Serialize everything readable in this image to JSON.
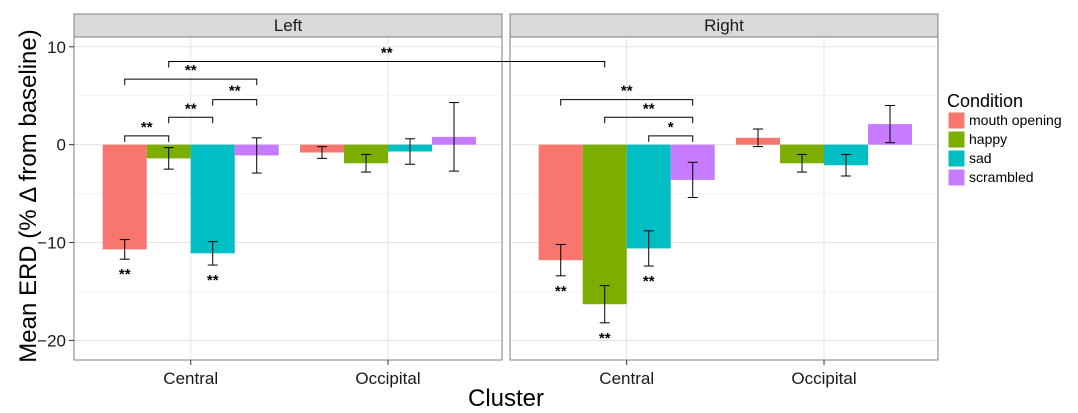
{
  "chart_data": {
    "type": "bar",
    "facets": [
      "Left",
      "Right"
    ],
    "categories": [
      "Central",
      "Occipital"
    ],
    "xlabel": "Cluster",
    "ylabel": "Mean ERD (% Δ from baseline)",
    "ylim": [
      -22,
      11
    ],
    "yticks": [
      10,
      0,
      -10,
      -20
    ],
    "ytick_labels": [
      "10",
      "0",
      "−10",
      "−20"
    ],
    "grid": true,
    "legend": {
      "title": "Condition",
      "position": "right"
    },
    "colors": {
      "mouth opening": "#F8766D",
      "happy": "#7CAE00",
      "sad": "#00BFC4",
      "scrambled": "#C77CFF"
    },
    "series": [
      {
        "name": "mouth opening",
        "values": {
          "Left": [
            -10.7,
            -0.8
          ],
          "Right": [
            -11.8,
            0.7
          ]
        },
        "errors": {
          "Left": [
            1.0,
            0.6
          ],
          "Right": [
            1.6,
            0.9
          ]
        }
      },
      {
        "name": "happy",
        "values": {
          "Left": [
            -1.4,
            -1.9
          ],
          "Right": [
            -16.3,
            -1.9
          ]
        },
        "errors": {
          "Left": [
            1.1,
            0.9
          ],
          "Right": [
            1.9,
            0.9
          ]
        }
      },
      {
        "name": "sad",
        "values": {
          "Left": [
            -11.1,
            -0.7
          ],
          "Right": [
            -10.6,
            -2.1
          ]
        },
        "errors": {
          "Left": [
            1.2,
            1.3
          ],
          "Right": [
            1.8,
            1.1
          ]
        }
      },
      {
        "name": "scrambled",
        "values": {
          "Left": [
            -1.1,
            0.8
          ],
          "Right": [
            -3.6,
            2.1
          ]
        },
        "errors": {
          "Left": [
            1.8,
            3.5
          ],
          "Right": [
            1.8,
            1.9
          ]
        }
      }
    ],
    "bar_annotations": [
      {
        "facet": "Left",
        "category": "Central",
        "series": "mouth opening",
        "label": "**"
      },
      {
        "facet": "Left",
        "category": "Central",
        "series": "sad",
        "label": "**"
      },
      {
        "facet": "Right",
        "category": "Central",
        "series": "mouth opening",
        "label": "**"
      },
      {
        "facet": "Right",
        "category": "Central",
        "series": "happy",
        "label": "**"
      },
      {
        "facet": "Right",
        "category": "Central",
        "series": "sad",
        "label": "**"
      }
    ],
    "comparisons": [
      {
        "from": {
          "facet": "Left",
          "category": "Central",
          "series": "mouth opening"
        },
        "to": {
          "facet": "Left",
          "category": "Central",
          "series": "happy"
        },
        "y": 0.9,
        "label": "**"
      },
      {
        "from": {
          "facet": "Left",
          "category": "Central",
          "series": "happy"
        },
        "to": {
          "facet": "Left",
          "category": "Central",
          "series": "sad"
        },
        "y": 2.8,
        "label": "**"
      },
      {
        "from": {
          "facet": "Left",
          "category": "Central",
          "series": "sad"
        },
        "to": {
          "facet": "Left",
          "category": "Central",
          "series": "scrambled"
        },
        "y": 4.6,
        "label": "**"
      },
      {
        "from": {
          "facet": "Left",
          "category": "Central",
          "series": "mouth opening"
        },
        "to": {
          "facet": "Left",
          "category": "Central",
          "series": "scrambled"
        },
        "y": 6.7,
        "label": "**"
      },
      {
        "from": {
          "facet": "Left",
          "category": "Central",
          "series": "happy"
        },
        "to": {
          "facet": "Right",
          "category": "Central",
          "series": "happy"
        },
        "y": 8.5,
        "label": "**"
      },
      {
        "from": {
          "facet": "Right",
          "category": "Central",
          "series": "sad"
        },
        "to": {
          "facet": "Right",
          "category": "Central",
          "series": "scrambled"
        },
        "y": 0.9,
        "label": "*"
      },
      {
        "from": {
          "facet": "Right",
          "category": "Central",
          "series": "happy"
        },
        "to": {
          "facet": "Right",
          "category": "Central",
          "series": "scrambled"
        },
        "y": 2.8,
        "label": "**"
      },
      {
        "from": {
          "facet": "Right",
          "category": "Central",
          "series": "mouth opening"
        },
        "to": {
          "facet": "Right",
          "category": "Central",
          "series": "scrambled"
        },
        "y": 4.6,
        "label": "**"
      }
    ]
  }
}
